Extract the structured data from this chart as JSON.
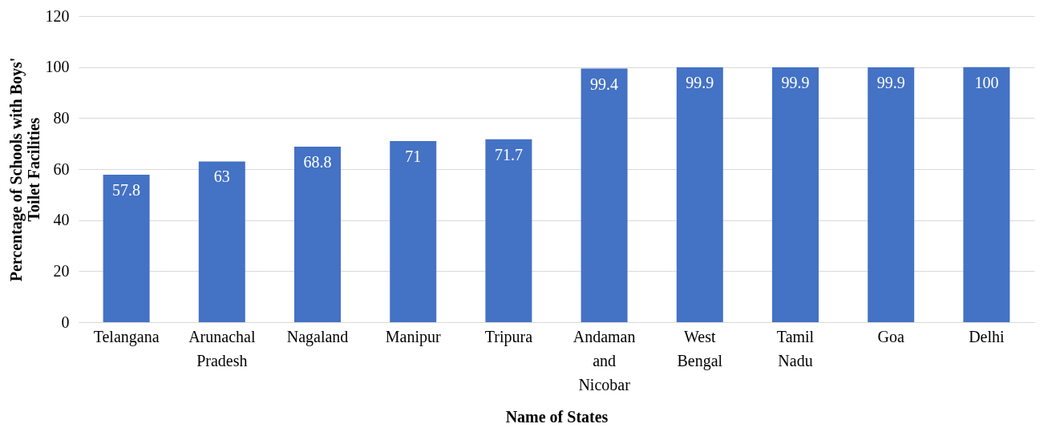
{
  "chart_data": {
    "type": "bar",
    "xlabel": "Name of States",
    "ylabel": "Percentage of Schools with Boys' Toilet Facilities",
    "categories": [
      "Telangana",
      "Arunachal Pradesh",
      "Nagaland",
      "Manipur",
      "Tripura",
      "Andaman and Nicobar",
      "West Bengal",
      "Tamil Nadu",
      "Goa",
      "Delhi"
    ],
    "values": [
      57.8,
      63,
      68.8,
      71,
      71.7,
      99.4,
      99.9,
      99.9,
      99.9,
      100
    ],
    "color": "#4472c4",
    "ylim": [
      0,
      120
    ],
    "yticks": [
      0,
      20,
      40,
      60,
      80,
      100,
      120
    ],
    "grid": "y",
    "data_labels": true
  }
}
